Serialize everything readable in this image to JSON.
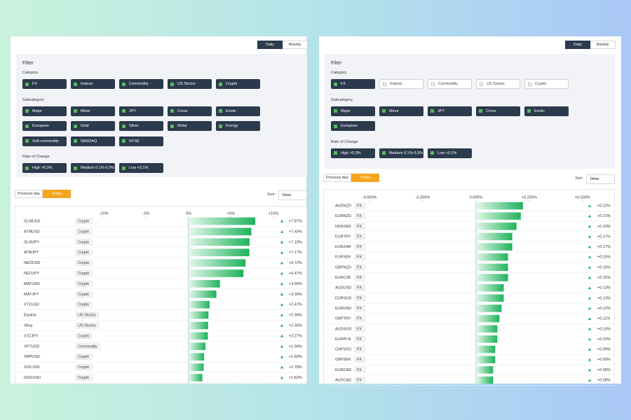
{
  "panels": [
    {
      "period_toggle": [
        "Daily",
        "Weekly"
      ],
      "filter": {
        "title": "Filter",
        "groups": [
          {
            "label": "Category",
            "options": [
              {
                "label": "FX",
                "checked": true
              },
              {
                "label": "Indices",
                "checked": true
              },
              {
                "label": "Commodity",
                "checked": true
              },
              {
                "label": "US Stocks",
                "checked": true
              },
              {
                "label": "Crypto",
                "checked": true
              }
            ]
          },
          {
            "label": "Subcategory",
            "options": [
              {
                "label": "Major",
                "checked": true
              },
              {
                "label": "Minor",
                "checked": true
              },
              {
                "label": "JPY",
                "checked": true
              },
              {
                "label": "Cross",
                "checked": true
              },
              {
                "label": "Exotic",
                "checked": true
              },
              {
                "label": "European",
                "checked": true
              },
              {
                "label": "Gold",
                "checked": true
              },
              {
                "label": "Silver",
                "checked": true
              },
              {
                "label": "Metal",
                "checked": true
              },
              {
                "label": "Energy",
                "checked": true
              },
              {
                "label": "Soft commodity",
                "checked": true
              },
              {
                "label": "NASDAQ",
                "checked": true
              },
              {
                "label": "NYSE",
                "checked": true
              }
            ]
          },
          {
            "label": "Rate of Change",
            "options": [
              {
                "label": "High >0.3%",
                "checked": true
              },
              {
                "label": "Medium 0.1%-0.3%",
                "checked": true
              },
              {
                "label": "Low <0.1%",
                "checked": true
              }
            ]
          }
        ]
      },
      "day_toggle": [
        "Previous day",
        "Today"
      ],
      "sort_label": "Sort :",
      "sort_value": "Desc",
      "chart": {
        "xlim": [
          -11,
          11
        ],
        "xticks": [
          {
            "value": -10,
            "label": "-10%"
          },
          {
            "value": -5,
            "label": "-5%"
          },
          {
            "value": 0,
            "label": "0%"
          },
          {
            "value": 5,
            "label": "+5%"
          },
          {
            "value": 10,
            "label": "+10%"
          }
        ],
        "names": [
          "GLMUSD",
          "ATMUSD",
          "GLMJPY",
          "ATMJPY",
          "NEOUSD",
          "NEOJPY",
          "MATUSD",
          "MATJPY",
          "XTZUSD",
          "Equinix",
          "eBay",
          "XTZJPY",
          "XPTUSD",
          "XRPUSD",
          "SOLUSD",
          "DOGUSD"
        ],
        "tags": [
          "Crypto",
          "Crypto",
          "Crypto",
          "Crypto",
          "Crypto",
          "Crypto",
          "Crypto",
          "Crypto",
          "Crypto",
          "US Stocks",
          "US Stocks",
          "Crypto",
          "Commodity",
          "Crypto",
          "Crypto",
          "Crypto"
        ],
        "values": [
          7.87,
          7.4,
          7.19,
          7.17,
          6.72,
          6.47,
          3.69,
          3.28,
          2.47,
          2.34,
          2.3,
          2.27,
          1.99,
          1.83,
          1.78,
          1.62
        ],
        "value_labels": [
          "+7.87%",
          "+7.40%",
          "+7.19%",
          "+7.17%",
          "+6.72%",
          "+6.47%",
          "+3.69%",
          "+3.28%",
          "+2.47%",
          "+2.34%",
          "+2.30%",
          "+2.27%",
          "+1.99%",
          "+1.83%",
          "+1.78%",
          "+1.62%"
        ]
      }
    },
    {
      "period_toggle": [
        "Daily",
        "Weekly"
      ],
      "filter": {
        "title": "Filter",
        "groups": [
          {
            "label": "Category",
            "options": [
              {
                "label": "FX",
                "checked": true
              },
              {
                "label": "Indices",
                "checked": false
              },
              {
                "label": "Commodity",
                "checked": false
              },
              {
                "label": "US Stocks",
                "checked": false
              },
              {
                "label": "Crypto",
                "checked": false
              }
            ]
          },
          {
            "label": "Subcategory",
            "options": [
              {
                "label": "Major",
                "checked": true
              },
              {
                "label": "Minor",
                "checked": true
              },
              {
                "label": "JPY",
                "checked": true
              },
              {
                "label": "Cross",
                "checked": true
              },
              {
                "label": "Exotic",
                "checked": true
              },
              {
                "label": "European",
                "checked": true
              }
            ]
          },
          {
            "label": "Rate of Change",
            "options": [
              {
                "label": "High >0.3%",
                "checked": true
              },
              {
                "label": "Medium 0.1%-0.3%",
                "checked": true
              },
              {
                "label": "Low <0.1%",
                "checked": true
              }
            ]
          }
        ]
      },
      "day_toggle": [
        "Previous day",
        "Today"
      ],
      "sort_label": "Sort :",
      "sort_value": "Desc",
      "chart": {
        "xlim": [
          -0.55,
          0.55
        ],
        "xticks": [
          {
            "value": -0.5,
            "label": "-0.500%"
          },
          {
            "value": -0.25,
            "label": "-0.250%"
          },
          {
            "value": 0,
            "label": "0.000%"
          },
          {
            "value": 0.25,
            "label": "+0.250%"
          },
          {
            "value": 0.5,
            "label": "+0.500%"
          }
        ],
        "names": [
          "AUDNZD",
          "EURNZD",
          "NOKSEK",
          "EURTRY",
          "EURZAR",
          "EURSEK",
          "GBPNZD",
          "EURCZK",
          "AUDUSD",
          "EURSGD",
          "EURUSD",
          "GBPTRY",
          "AUDSGD",
          "EURPLN",
          "CHFSGD",
          "GBPSEK",
          "EURCAD",
          "AUDCAD"
        ],
        "tags": [
          "FX",
          "FX",
          "FX",
          "FX",
          "FX",
          "FX",
          "FX",
          "FX",
          "FX",
          "FX",
          "FX",
          "FX",
          "FX",
          "FX",
          "FX",
          "FX",
          "FX",
          "FX"
        ],
        "values": [
          0.22,
          0.21,
          0.19,
          0.17,
          0.17,
          0.15,
          0.15,
          0.15,
          0.13,
          0.13,
          0.12,
          0.11,
          0.1,
          0.1,
          0.09,
          0.09,
          0.08,
          0.08
        ],
        "value_labels": [
          "+0.22%",
          "+0.21%",
          "+0.19%",
          "+0.17%",
          "+0.17%",
          "+0.15%",
          "+0.15%",
          "+0.15%",
          "+0.13%",
          "+0.13%",
          "+0.12%",
          "+0.11%",
          "+0.10%",
          "+0.10%",
          "+0.09%",
          "+0.09%",
          "+0.08%",
          "+0.08%"
        ]
      }
    }
  ]
}
